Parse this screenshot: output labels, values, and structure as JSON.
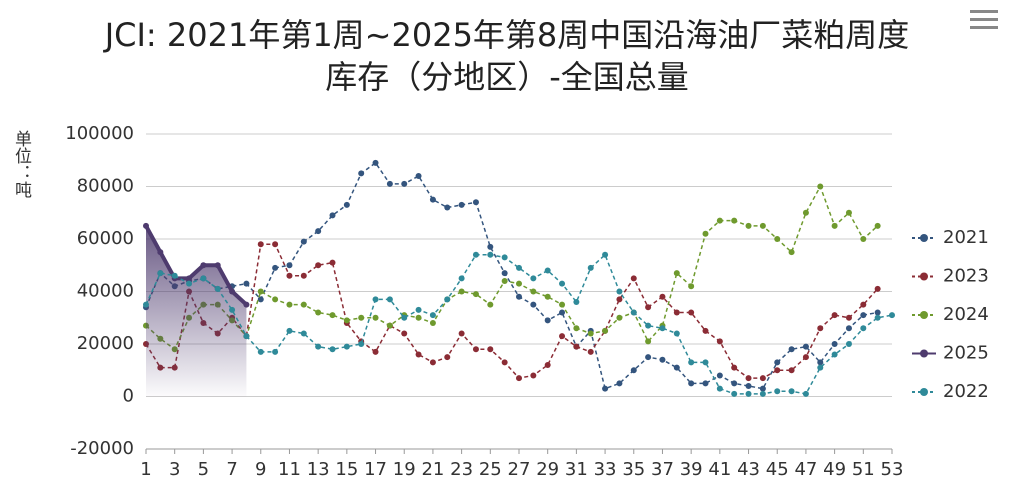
{
  "chart_data": {
    "type": "line",
    "title": "JCI: 2021年第1周~2025年第8周中国沿海油厂菜粕周度库存（分地区）-全国总量",
    "y_label": "单位：吨",
    "x": [
      1,
      2,
      3,
      4,
      5,
      6,
      7,
      8,
      9,
      10,
      11,
      12,
      13,
      14,
      15,
      16,
      17,
      18,
      19,
      20,
      21,
      22,
      23,
      24,
      25,
      26,
      27,
      28,
      29,
      30,
      31,
      32,
      33,
      34,
      35,
      36,
      37,
      38,
      39,
      40,
      41,
      42,
      43,
      44,
      45,
      46,
      47,
      48,
      49,
      50,
      51,
      52,
      53
    ],
    "xlim": [
      1,
      53
    ],
    "xticks": [
      1,
      3,
      5,
      7,
      9,
      11,
      13,
      15,
      17,
      19,
      21,
      23,
      25,
      27,
      29,
      31,
      33,
      35,
      37,
      39,
      41,
      43,
      45,
      47,
      49,
      51,
      53
    ],
    "ylim": [
      -20000,
      100000
    ],
    "yticks": [
      -20000,
      0,
      20000,
      40000,
      60000,
      80000,
      100000
    ],
    "grid": true,
    "legend": "right",
    "series": [
      {
        "name": "2021",
        "color": "#34557e",
        "style": "dashed",
        "values": [
          34000,
          47000,
          42000,
          44000,
          45000,
          41000,
          42000,
          43000,
          37000,
          49000,
          50000,
          59000,
          63000,
          69000,
          73000,
          85000,
          89000,
          81000,
          81000,
          84000,
          75000,
          72000,
          73000,
          74000,
          57000,
          47000,
          38000,
          35000,
          29000,
          32000,
          19000,
          25000,
          3000,
          5000,
          10000,
          15000,
          14000,
          11000,
          5000,
          5000,
          8000,
          5000,
          4000,
          3000,
          13000,
          18000,
          19000,
          13000,
          20000,
          26000,
          31000,
          32000,
          null
        ]
      },
      {
        "name": "2023",
        "color": "#8b2c35",
        "style": "dashed",
        "values": [
          20000,
          11000,
          11000,
          40000,
          28000,
          24000,
          30000,
          23000,
          58000,
          58000,
          46000,
          46000,
          50000,
          51000,
          28000,
          21000,
          17000,
          27000,
          24000,
          16000,
          13000,
          15000,
          24000,
          18000,
          18000,
          13000,
          7000,
          8000,
          12000,
          23000,
          19000,
          17000,
          25000,
          37000,
          45000,
          34000,
          38000,
          32000,
          32000,
          25000,
          21000,
          11000,
          7000,
          7000,
          10000,
          10000,
          15000,
          26000,
          31000,
          30000,
          35000,
          41000,
          null
        ]
      },
      {
        "name": "2024",
        "color": "#6f9a2e",
        "style": "dashed",
        "values": [
          27000,
          22000,
          18000,
          30000,
          35000,
          35000,
          29000,
          23000,
          40000,
          37000,
          35000,
          35000,
          32000,
          31000,
          29000,
          30000,
          30000,
          27000,
          31000,
          30000,
          28000,
          37000,
          40000,
          39000,
          35000,
          44000,
          43000,
          40000,
          38000,
          35000,
          26000,
          24000,
          25000,
          30000,
          32000,
          21000,
          27000,
          47000,
          42000,
          62000,
          67000,
          67000,
          65000,
          65000,
          60000,
          55000,
          70000,
          80000,
          65000,
          70000,
          60000,
          65000,
          null
        ]
      },
      {
        "name": "2025",
        "color": "#4e3b6e",
        "style": "solid",
        "area": true,
        "values": [
          65000,
          55000,
          45000,
          45000,
          50000,
          50000,
          40000,
          35000,
          null,
          null,
          null,
          null,
          null,
          null,
          null,
          null,
          null,
          null,
          null,
          null,
          null,
          null,
          null,
          null,
          null,
          null,
          null,
          null,
          null,
          null,
          null,
          null,
          null,
          null,
          null,
          null,
          null,
          null,
          null,
          null,
          null,
          null,
          null,
          null,
          null,
          null,
          null,
          null,
          null,
          null,
          null,
          null,
          null
        ]
      },
      {
        "name": "2022",
        "color": "#2f8a99",
        "style": "dashed",
        "values": [
          35000,
          47000,
          46000,
          43000,
          45000,
          41000,
          33000,
          23000,
          17000,
          17000,
          25000,
          24000,
          19000,
          18000,
          19000,
          20000,
          37000,
          37000,
          30000,
          33000,
          31000,
          37000,
          45000,
          54000,
          54000,
          53000,
          49000,
          45000,
          48000,
          43000,
          36000,
          49000,
          54000,
          40000,
          32000,
          27000,
          26000,
          24000,
          13000,
          13000,
          3000,
          1000,
          1000,
          1000,
          2000,
          2000,
          1000,
          11000,
          16000,
          20000,
          26000,
          30000,
          31000
        ]
      }
    ]
  }
}
